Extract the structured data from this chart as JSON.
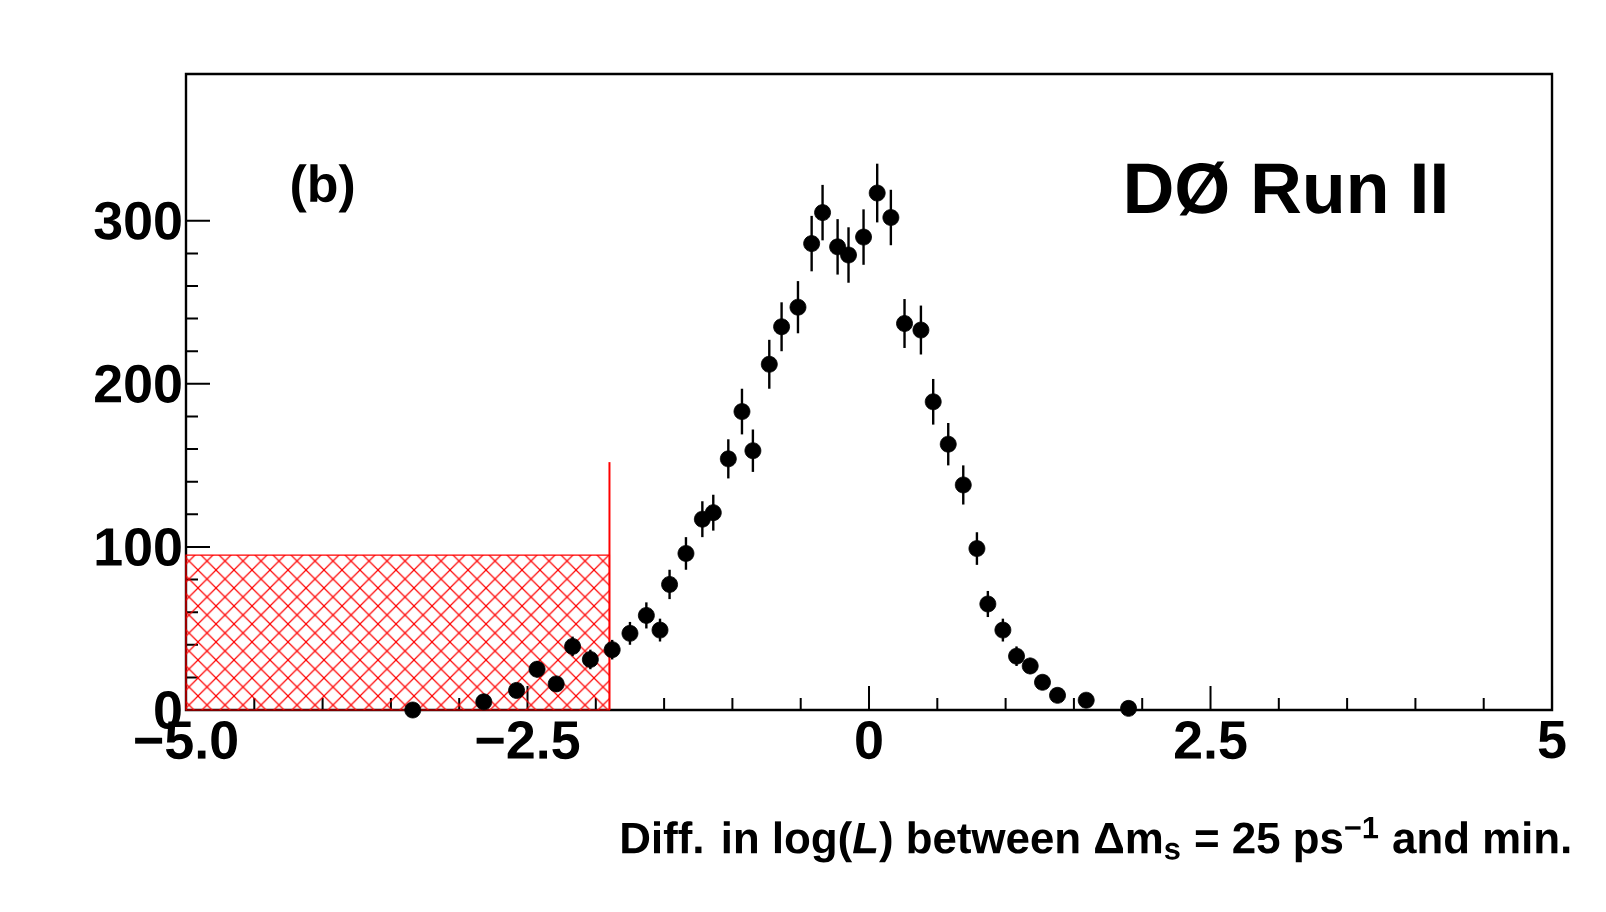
{
  "chart_data": {
    "type": "scatter",
    "xlabel": "Diff. in log(*L*) between Δm$_{s}$ = 25 ps$^{−1}$ and min.",
    "annotations": [
      "(b)",
      "DØ Run II"
    ],
    "xlim": [
      -5,
      5
    ],
    "ylim": [
      0,
      390
    ],
    "xticks": [
      {
        "value": -5,
        "label": "−5.0"
      },
      {
        "value": -2.5,
        "label": "−2.5"
      },
      0,
      2.5,
      5
    ],
    "yticks": [
      0,
      100,
      200,
      300
    ],
    "series": [
      {
        "type": "histogram",
        "color": "#ff0000",
        "bins": [
          -5,
          -1.9
        ],
        "values": [
          95
        ]
      },
      {
        "type": "line",
        "color": "#ff0000",
        "x": [
          -1.9,
          -1.9
        ],
        "values": [
          0,
          152
        ]
      },
      {
        "type": "scatter",
        "color": "#000000",
        "marker": "circle",
        "x": [
          -3.34,
          -2.82,
          -2.58,
          -2.43,
          -2.29,
          -2.17,
          -2.04,
          -1.88,
          -1.75,
          -1.63,
          -1.53,
          -1.46,
          -1.34,
          -1.22,
          -1.14,
          -1.03,
          -0.93,
          -0.85,
          -0.73,
          -0.64,
          -0.52,
          -0.42,
          -0.34,
          -0.23,
          -0.15,
          -0.04,
          0.06,
          0.16,
          0.26,
          0.38,
          0.47,
          0.58,
          0.69,
          0.79,
          0.87,
          0.98,
          1.08,
          1.18,
          1.27,
          1.38,
          1.59,
          1.9
        ],
        "values": [
          0,
          5,
          12,
          25,
          16,
          39,
          31,
          37,
          47,
          58,
          49,
          77,
          96,
          117,
          121,
          154,
          183,
          159,
          212,
          235,
          247,
          286,
          305,
          284,
          279,
          290,
          317,
          302,
          237,
          233,
          189,
          163,
          138,
          99,
          65,
          49,
          33,
          27,
          17,
          9,
          6,
          1
        ],
        "errors": [
          1,
          3,
          4,
          5,
          4,
          6,
          6,
          6,
          7,
          8,
          7,
          9,
          10,
          11,
          11,
          12,
          14,
          13,
          15,
          15,
          16,
          17,
          17,
          17,
          17,
          17,
          18,
          17,
          15,
          15,
          14,
          13,
          12,
          10,
          8,
          7,
          6,
          5,
          4,
          3,
          2,
          1
        ]
      }
    ]
  }
}
